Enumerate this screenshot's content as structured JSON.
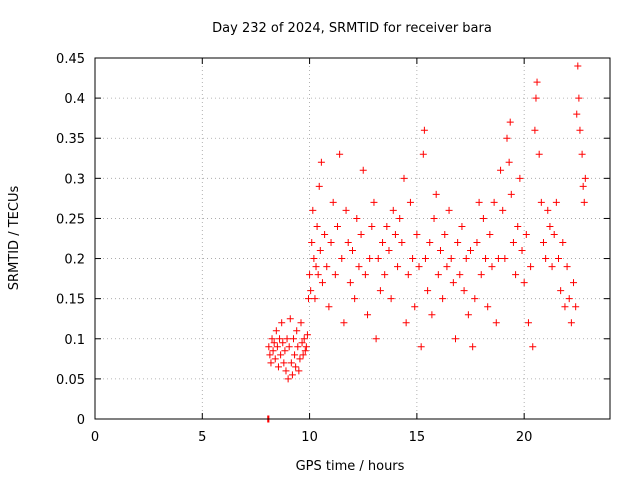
{
  "chart_data": {
    "type": "scatter",
    "title": "Day 232 of 2024, SRMTID for receiver bara",
    "xlabel": "GPS time / hours",
    "ylabel": "SRMTID / TECUs",
    "xlim": [
      0,
      24
    ],
    "ylim": [
      0,
      0.45
    ],
    "xticks": [
      0,
      5,
      10,
      15,
      20
    ],
    "yticks": [
      0,
      0.05,
      0.1,
      0.15,
      0.2,
      0.25,
      0.3,
      0.35,
      0.4,
      0.45
    ],
    "xtick_labels": [
      "0",
      "5",
      "10",
      "15",
      "20"
    ],
    "ytick_labels": [
      "0",
      "0.05",
      "0.1",
      "0.15",
      "0.2",
      "0.25",
      "0.3",
      "0.35",
      "0.4",
      "0.45"
    ],
    "grid": true,
    "marker": "+",
    "color": "#ff0000",
    "series": [
      {
        "name": "SRMTID",
        "points": [
          [
            8.05,
            0.0
          ],
          [
            8.07,
            0.0
          ],
          [
            8.09,
            0.0
          ],
          [
            8.1,
            0.0
          ],
          [
            8.1,
            0.09
          ],
          [
            8.15,
            0.08
          ],
          [
            8.2,
            0.07
          ],
          [
            8.25,
            0.1
          ],
          [
            8.3,
            0.085
          ],
          [
            8.35,
            0.095
          ],
          [
            8.4,
            0.075
          ],
          [
            8.45,
            0.11
          ],
          [
            8.5,
            0.09
          ],
          [
            8.55,
            0.065
          ],
          [
            8.6,
            0.1
          ],
          [
            8.65,
            0.08
          ],
          [
            8.7,
            0.12
          ],
          [
            8.75,
            0.095
          ],
          [
            8.8,
            0.07
          ],
          [
            8.85,
            0.085
          ],
          [
            8.9,
            0.06
          ],
          [
            8.95,
            0.1
          ],
          [
            9.0,
            0.05
          ],
          [
            9.05,
            0.09
          ],
          [
            9.1,
            0.125
          ],
          [
            9.15,
            0.07
          ],
          [
            9.2,
            0.055
          ],
          [
            9.25,
            0.1
          ],
          [
            9.3,
            0.08
          ],
          [
            9.35,
            0.065
          ],
          [
            9.4,
            0.11
          ],
          [
            9.45,
            0.09
          ],
          [
            9.5,
            0.06
          ],
          [
            9.55,
            0.075
          ],
          [
            9.6,
            0.12
          ],
          [
            9.65,
            0.095
          ],
          [
            9.7,
            0.08
          ],
          [
            9.75,
            0.1
          ],
          [
            9.8,
            0.085
          ],
          [
            9.85,
            0.09
          ],
          [
            9.9,
            0.105
          ],
          [
            9.95,
            0.15
          ],
          [
            10.0,
            0.18
          ],
          [
            10.05,
            0.16
          ],
          [
            10.1,
            0.22
          ],
          [
            10.15,
            0.26
          ],
          [
            10.2,
            0.2
          ],
          [
            10.25,
            0.15
          ],
          [
            10.3,
            0.19
          ],
          [
            10.35,
            0.24
          ],
          [
            10.4,
            0.18
          ],
          [
            10.45,
            0.29
          ],
          [
            10.5,
            0.21
          ],
          [
            10.55,
            0.32
          ],
          [
            10.6,
            0.17
          ],
          [
            10.7,
            0.23
          ],
          [
            10.8,
            0.19
          ],
          [
            10.9,
            0.14
          ],
          [
            11.0,
            0.22
          ],
          [
            11.1,
            0.27
          ],
          [
            11.2,
            0.18
          ],
          [
            11.3,
            0.24
          ],
          [
            11.4,
            0.33
          ],
          [
            11.5,
            0.2
          ],
          [
            11.6,
            0.12
          ],
          [
            11.7,
            0.26
          ],
          [
            11.8,
            0.22
          ],
          [
            11.9,
            0.17
          ],
          [
            12.0,
            0.21
          ],
          [
            12.1,
            0.15
          ],
          [
            12.2,
            0.25
          ],
          [
            12.3,
            0.19
          ],
          [
            12.4,
            0.23
          ],
          [
            12.5,
            0.31
          ],
          [
            12.6,
            0.18
          ],
          [
            12.7,
            0.13
          ],
          [
            12.8,
            0.2
          ],
          [
            12.9,
            0.24
          ],
          [
            13.0,
            0.27
          ],
          [
            13.1,
            0.1
          ],
          [
            13.2,
            0.2
          ],
          [
            13.3,
            0.16
          ],
          [
            13.4,
            0.22
          ],
          [
            13.5,
            0.18
          ],
          [
            13.6,
            0.24
          ],
          [
            13.7,
            0.21
          ],
          [
            13.8,
            0.15
          ],
          [
            13.9,
            0.26
          ],
          [
            14.0,
            0.23
          ],
          [
            14.1,
            0.19
          ],
          [
            14.2,
            0.25
          ],
          [
            14.3,
            0.22
          ],
          [
            14.4,
            0.3
          ],
          [
            14.5,
            0.12
          ],
          [
            14.6,
            0.18
          ],
          [
            14.7,
            0.27
          ],
          [
            14.8,
            0.2
          ],
          [
            14.9,
            0.14
          ],
          [
            15.0,
            0.23
          ],
          [
            15.1,
            0.19
          ],
          [
            15.2,
            0.09
          ],
          [
            15.3,
            0.33
          ],
          [
            15.35,
            0.36
          ],
          [
            15.4,
            0.2
          ],
          [
            15.5,
            0.16
          ],
          [
            15.6,
            0.22
          ],
          [
            15.7,
            0.13
          ],
          [
            15.8,
            0.25
          ],
          [
            15.9,
            0.28
          ],
          [
            16.0,
            0.18
          ],
          [
            16.1,
            0.21
          ],
          [
            16.2,
            0.15
          ],
          [
            16.3,
            0.23
          ],
          [
            16.4,
            0.19
          ],
          [
            16.5,
            0.26
          ],
          [
            16.6,
            0.2
          ],
          [
            16.7,
            0.17
          ],
          [
            16.8,
            0.1
          ],
          [
            16.9,
            0.22
          ],
          [
            17.0,
            0.18
          ],
          [
            17.1,
            0.24
          ],
          [
            17.2,
            0.16
          ],
          [
            17.3,
            0.2
          ],
          [
            17.4,
            0.13
          ],
          [
            17.5,
            0.21
          ],
          [
            17.6,
            0.09
          ],
          [
            17.7,
            0.15
          ],
          [
            17.8,
            0.22
          ],
          [
            17.9,
            0.27
          ],
          [
            18.0,
            0.18
          ],
          [
            18.1,
            0.25
          ],
          [
            18.2,
            0.2
          ],
          [
            18.3,
            0.14
          ],
          [
            18.4,
            0.23
          ],
          [
            18.5,
            0.19
          ],
          [
            18.6,
            0.27
          ],
          [
            18.7,
            0.12
          ],
          [
            18.8,
            0.2
          ],
          [
            18.9,
            0.31
          ],
          [
            19.0,
            0.26
          ],
          [
            19.1,
            0.2
          ],
          [
            19.2,
            0.35
          ],
          [
            19.3,
            0.32
          ],
          [
            19.35,
            0.37
          ],
          [
            19.4,
            0.28
          ],
          [
            19.5,
            0.22
          ],
          [
            19.6,
            0.18
          ],
          [
            19.7,
            0.24
          ],
          [
            19.8,
            0.3
          ],
          [
            19.9,
            0.21
          ],
          [
            20.0,
            0.17
          ],
          [
            20.1,
            0.23
          ],
          [
            20.2,
            0.12
          ],
          [
            20.3,
            0.19
          ],
          [
            20.4,
            0.09
          ],
          [
            20.5,
            0.36
          ],
          [
            20.55,
            0.4
          ],
          [
            20.6,
            0.42
          ],
          [
            20.7,
            0.33
          ],
          [
            20.8,
            0.27
          ],
          [
            20.9,
            0.22
          ],
          [
            21.0,
            0.2
          ],
          [
            21.1,
            0.26
          ],
          [
            21.2,
            0.24
          ],
          [
            21.3,
            0.19
          ],
          [
            21.4,
            0.23
          ],
          [
            21.5,
            0.27
          ],
          [
            21.6,
            0.2
          ],
          [
            21.7,
            0.16
          ],
          [
            21.8,
            0.22
          ],
          [
            21.9,
            0.14
          ],
          [
            22.0,
            0.19
          ],
          [
            22.1,
            0.15
          ],
          [
            22.2,
            0.12
          ],
          [
            22.3,
            0.17
          ],
          [
            22.4,
            0.14
          ],
          [
            22.45,
            0.38
          ],
          [
            22.5,
            0.44
          ],
          [
            22.55,
            0.4
          ],
          [
            22.6,
            0.36
          ],
          [
            22.7,
            0.33
          ],
          [
            22.75,
            0.29
          ],
          [
            22.8,
            0.27
          ],
          [
            22.85,
            0.3
          ]
        ]
      }
    ]
  }
}
